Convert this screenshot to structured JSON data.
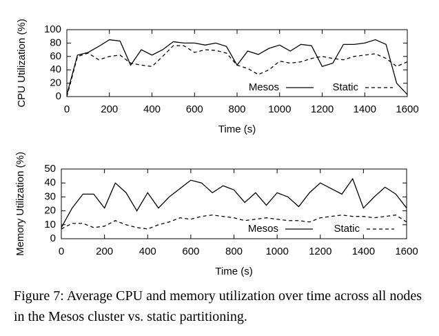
{
  "chart_data": [
    {
      "type": "line",
      "y_label": "CPU Utilization (%)",
      "x_label": "Time (s)",
      "x": [
        0,
        50,
        100,
        150,
        200,
        250,
        300,
        350,
        400,
        450,
        500,
        550,
        600,
        650,
        700,
        750,
        800,
        850,
        900,
        950,
        1000,
        1050,
        1100,
        1150,
        1200,
        1250,
        1300,
        1350,
        1400,
        1450,
        1500,
        1550,
        1600
      ],
      "series": [
        {
          "name": "Mesos",
          "color": "#000000",
          "dashed": false,
          "values": [
            3,
            62,
            66,
            75,
            85,
            83,
            47,
            70,
            62,
            70,
            82,
            80,
            80,
            77,
            80,
            75,
            47,
            68,
            63,
            72,
            77,
            68,
            78,
            76,
            45,
            50,
            78,
            78,
            80,
            85,
            78,
            20,
            3
          ]
        },
        {
          "name": "Static",
          "color": "#000000",
          "dashed": true,
          "values": [
            0,
            60,
            65,
            55,
            60,
            62,
            50,
            47,
            45,
            60,
            76,
            76,
            66,
            70,
            69,
            65,
            47,
            42,
            33,
            40,
            53,
            50,
            52,
            57,
            60,
            57,
            55,
            60,
            62,
            64,
            57,
            45,
            52
          ]
        }
      ],
      "xlim": [
        0,
        1600
      ],
      "xticks": [
        0,
        200,
        400,
        600,
        800,
        1000,
        1200,
        1400,
        1600
      ],
      "ylim": [
        0,
        100
      ],
      "yticks": [
        0,
        20,
        40,
        60,
        80,
        100
      ],
      "legend": "lower-right"
    },
    {
      "type": "line",
      "y_label": "Memory Utilization (%)",
      "x_label": "Time (s)",
      "x": [
        0,
        50,
        100,
        150,
        200,
        250,
        300,
        350,
        400,
        450,
        500,
        550,
        600,
        650,
        700,
        750,
        800,
        850,
        900,
        950,
        1000,
        1050,
        1100,
        1150,
        1200,
        1250,
        1300,
        1350,
        1400,
        1450,
        1500,
        1550,
        1600
      ],
      "series": [
        {
          "name": "Mesos",
          "color": "#000000",
          "dashed": false,
          "values": [
            8,
            22,
            32,
            32,
            22,
            40,
            33,
            20,
            33,
            22,
            30,
            36,
            42,
            40,
            33,
            38,
            35,
            26,
            33,
            24,
            33,
            30,
            23,
            33,
            40,
            36,
            32,
            43,
            22,
            30,
            37,
            32,
            22
          ]
        },
        {
          "name": "Static",
          "color": "#000000",
          "dashed": true,
          "values": [
            7,
            11,
            11,
            8,
            9,
            13,
            10,
            8,
            7,
            10,
            12,
            15,
            14,
            16,
            17,
            16,
            15,
            13,
            14,
            15,
            14,
            13,
            13,
            12,
            15,
            16,
            17,
            16,
            16,
            15,
            16,
            17,
            12
          ]
        }
      ],
      "xlim": [
        0,
        1600
      ],
      "xticks": [
        0,
        200,
        400,
        600,
        800,
        1000,
        1200,
        1400,
        1600
      ],
      "ylim": [
        0,
        50
      ],
      "yticks": [
        0,
        10,
        20,
        30,
        40,
        50
      ],
      "legend": "lower-right"
    }
  ],
  "caption": "Figure 7:  Average CPU and memory utilization over time across all nodes in the Mesos cluster vs. static partitioning."
}
